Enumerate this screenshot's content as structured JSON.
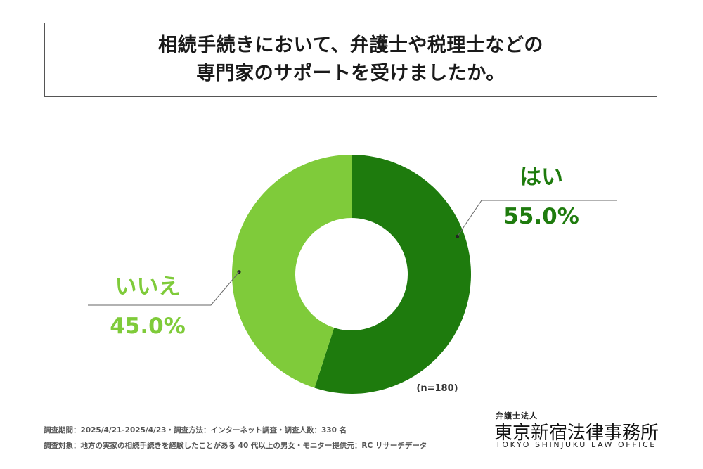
{
  "title": {
    "line1": "相続手続きにおいて、弁護士や税理士などの",
    "line2": "専門家のサポートを受けましたか。"
  },
  "chart_data": {
    "type": "pie",
    "donut": true,
    "sample_size": "(n=180)",
    "categories": [
      "はい",
      "いいえ"
    ],
    "values": [
      55.0,
      45.0
    ],
    "value_labels": [
      "55.0%",
      "45.0%"
    ],
    "colors": [
      "#1e7b0d",
      "#7fcb3a"
    ]
  },
  "footer": {
    "survey_line1": "調査期間：2025/4/21-2025/4/23・調査方法：インターネット調査・調査人数：330 名",
    "survey_line2": "調査対象：地方の実家の相続手続きを経験したことがある 40 代以上の男女・モニター提供元：RC リサーチデータ"
  },
  "logo": {
    "subtitle": "弁護士法人",
    "name": "東京新宿法律事務所",
    "english": "TOKYO SHINJUKU LAW OFFICE"
  }
}
